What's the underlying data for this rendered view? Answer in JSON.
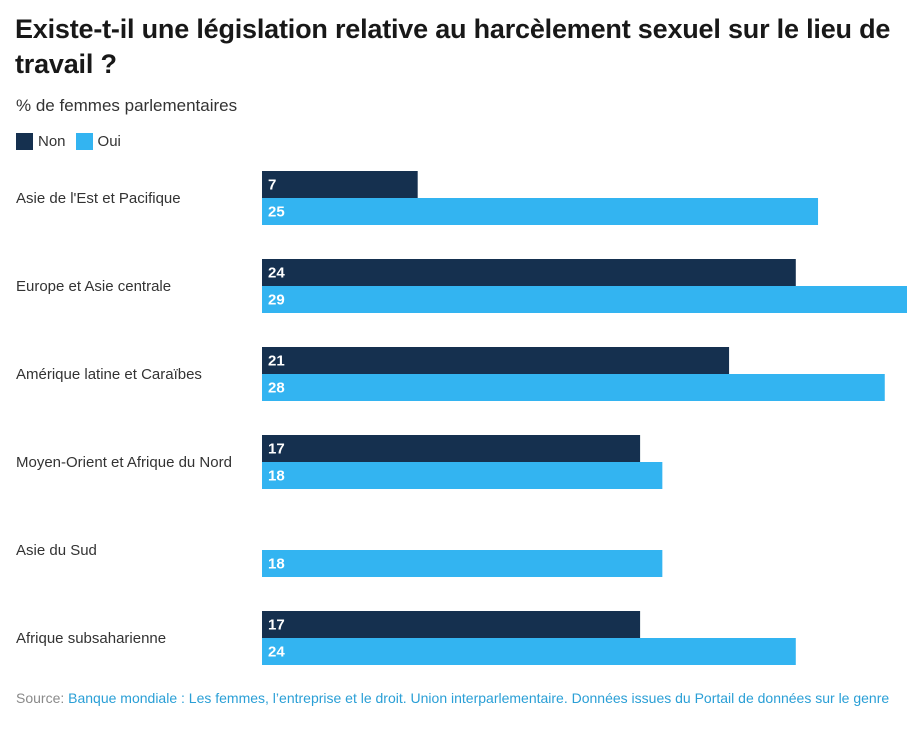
{
  "title": "Existe-t-il une législation relative au harcèlement sexuel sur le lieu de travail ?",
  "subtitle": "% de femmes parlementaires",
  "legend": [
    {
      "label": "Non",
      "color": "#15304f"
    },
    {
      "label": "Oui",
      "color": "#33b4f1"
    }
  ],
  "source": {
    "prefix": "Source: ",
    "text": "Banque mondiale : Les femmes, l’entreprise et le droit. Union interparlementaire. Données issues du Portail de données sur le genre"
  },
  "chart_data": {
    "type": "bar",
    "orientation": "horizontal",
    "title": "Existe-t-il une législation relative au harcèlement sexuel sur le lieu de travail ?",
    "subtitle": "% de femmes parlementaires",
    "categories": [
      "Asie de l'Est et Pacifique",
      "Europe et Asie centrale",
      "Amérique latine et Caraïbes",
      "Moyen-Orient et Afrique du Nord",
      "Asie du Sud",
      "Afrique subsaharienne"
    ],
    "series": [
      {
        "name": "Non",
        "color": "#15304f",
        "values": [
          7,
          24,
          21,
          17,
          null,
          17
        ]
      },
      {
        "name": "Oui",
        "color": "#33b4f1",
        "values": [
          25,
          29,
          28,
          18,
          18,
          24
        ]
      }
    ],
    "xlim": [
      0,
      29
    ],
    "grid": false,
    "legend_position": "top-left"
  }
}
